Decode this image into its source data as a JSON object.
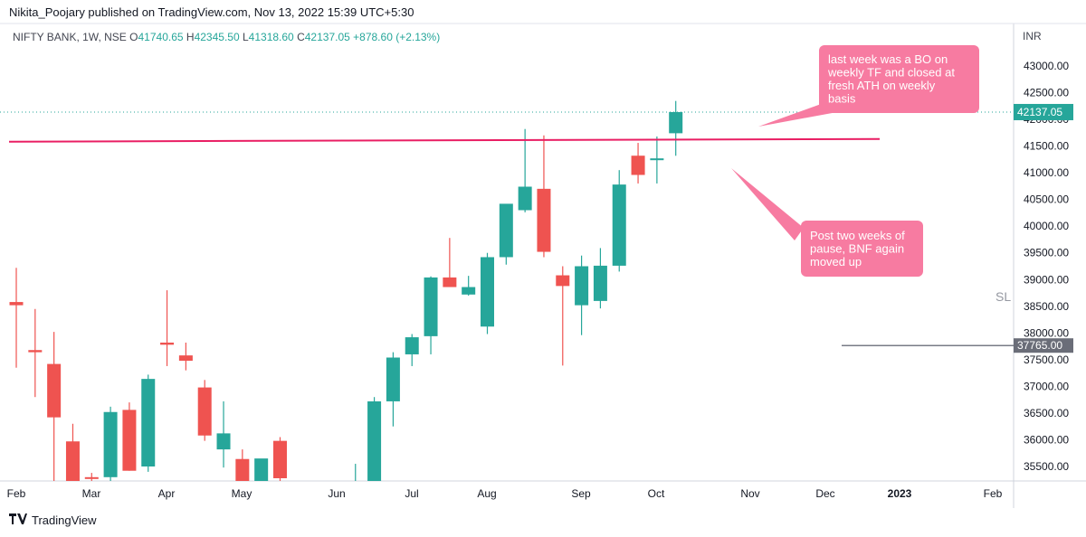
{
  "header": {
    "published_line": "Nikita_Poojary published on TradingView.com, Nov 13, 2022 15:39 UTC+5:30"
  },
  "legend": {
    "symbol": "NIFTY BANK, 1W, NSE",
    "open_label": "O",
    "open": "41740.65",
    "high_label": "H",
    "high": "42345.50",
    "low_label": "L",
    "low": "41318.60",
    "close_label": "C",
    "close": "42137.05",
    "change": "+878.60 (+2.13%)"
  },
  "price_axis": {
    "currency": "INR",
    "ticks": [
      "43000.00",
      "42500.00",
      "42000.00",
      "41500.00",
      "41000.00",
      "40500.00",
      "40000.00",
      "39500.00",
      "39000.00",
      "38500.00",
      "38000.00",
      "37500.00",
      "37000.00",
      "36500.00",
      "36000.00",
      "35500.00"
    ],
    "last_price_label": "42137.05",
    "level_label": "37765.00"
  },
  "time_axis": {
    "labels": [
      "Feb",
      "Mar",
      "Apr",
      "May",
      "Jun",
      "Jul",
      "Aug",
      "Sep",
      "Oct",
      "Nov",
      "Dec",
      "2023",
      "Feb"
    ]
  },
  "annotations": {
    "note_top": [
      "last week was a BO on",
      "weekly TF and closed at",
      "fresh ATH on weekly",
      "basis"
    ],
    "note_bottom": [
      "Post two weeks of",
      "pause, BNF again",
      "moved up"
    ],
    "sl_label": "SL"
  },
  "footer": {
    "brand": "TradingView"
  },
  "colors": {
    "up": "#26a69a",
    "down": "#ef5350",
    "resistance_line": "#e91e63",
    "callout": "#f77ba1",
    "sl_line": "#787b86",
    "last_price": "#26a69a",
    "grid_border": "#d1d4dc"
  },
  "chart_data": {
    "type": "candlestick",
    "title": "NIFTY BANK, 1W, NSE",
    "timeframe": "1W",
    "currency": "INR",
    "ylim": [
      35250,
      43400
    ],
    "x_labels": [
      "Feb",
      "Mar",
      "Apr",
      "May",
      "Jun",
      "Jul",
      "Aug",
      "Sep",
      "Oct",
      "Nov",
      "Dec",
      "2023",
      "Feb"
    ],
    "candles": [
      {
        "o": 38580,
        "h": 39220,
        "l": 37350,
        "c": 38520
      },
      {
        "o": 37680,
        "h": 38450,
        "l": 36800,
        "c": 37640
      },
      {
        "o": 37420,
        "h": 38020,
        "l": 35200,
        "c": 36420
      },
      {
        "o": 35970,
        "h": 36300,
        "l": 35200,
        "c": 35200
      },
      {
        "o": 35300,
        "h": 35380,
        "l": 35200,
        "c": 35280
      },
      {
        "o": 35300,
        "h": 36620,
        "l": 35200,
        "c": 36520
      },
      {
        "o": 36560,
        "h": 36700,
        "l": 35420,
        "c": 35420
      },
      {
        "o": 35500,
        "h": 37220,
        "l": 35400,
        "c": 37140
      },
      {
        "o": 37820,
        "h": 38800,
        "l": 37380,
        "c": 37780
      },
      {
        "o": 37580,
        "h": 37820,
        "l": 37300,
        "c": 37480
      },
      {
        "o": 36980,
        "h": 37120,
        "l": 35980,
        "c": 36080
      },
      {
        "o": 35820,
        "h": 36720,
        "l": 35480,
        "c": 36120
      },
      {
        "o": 35640,
        "h": 35820,
        "l": 35200,
        "c": 35200
      },
      {
        "o": 35200,
        "h": 35600,
        "l": 35200,
        "c": 35650
      },
      {
        "o": 35980,
        "h": 36050,
        "l": 35200,
        "c": 35280
      },
      {
        "o": 35200,
        "h": 35200,
        "l": 35200,
        "c": 35200
      },
      {
        "o": 35200,
        "h": 35200,
        "l": 35200,
        "c": 35200
      },
      {
        "o": 35200,
        "h": 35200,
        "l": 35200,
        "c": 35200
      },
      {
        "o": 35200,
        "h": 35550,
        "l": 35200,
        "c": 35200
      },
      {
        "o": 35200,
        "h": 36800,
        "l": 35200,
        "c": 36720
      },
      {
        "o": 36720,
        "h": 37640,
        "l": 36250,
        "c": 37540
      },
      {
        "o": 37600,
        "h": 37980,
        "l": 37380,
        "c": 37920
      },
      {
        "o": 37940,
        "h": 39060,
        "l": 37600,
        "c": 39040
      },
      {
        "o": 39040,
        "h": 39780,
        "l": 38940,
        "c": 38860
      },
      {
        "o": 38720,
        "h": 39070,
        "l": 38700,
        "c": 38860
      },
      {
        "o": 38120,
        "h": 39500,
        "l": 37980,
        "c": 39420
      },
      {
        "o": 39420,
        "h": 40400,
        "l": 39280,
        "c": 40420
      },
      {
        "o": 40300,
        "h": 41820,
        "l": 40260,
        "c": 40740
      },
      {
        "o": 40700,
        "h": 41700,
        "l": 39420,
        "c": 39520
      },
      {
        "o": 39080,
        "h": 39250,
        "l": 37390,
        "c": 38880
      },
      {
        "o": 38520,
        "h": 39450,
        "l": 37960,
        "c": 39250
      },
      {
        "o": 38600,
        "h": 39590,
        "l": 38460,
        "c": 39260
      },
      {
        "o": 39260,
        "h": 41050,
        "l": 39150,
        "c": 40780
      },
      {
        "o": 41320,
        "h": 41560,
        "l": 40800,
        "c": 40960
      },
      {
        "o": 41260,
        "h": 41680,
        "l": 40800,
        "c": 41270
      },
      {
        "o": 41740.65,
        "h": 42345.5,
        "l": 41318.6,
        "c": 42137.05
      }
    ],
    "resistance_line": 41600,
    "sl_level": 37765,
    "last_price": 42137.05
  }
}
